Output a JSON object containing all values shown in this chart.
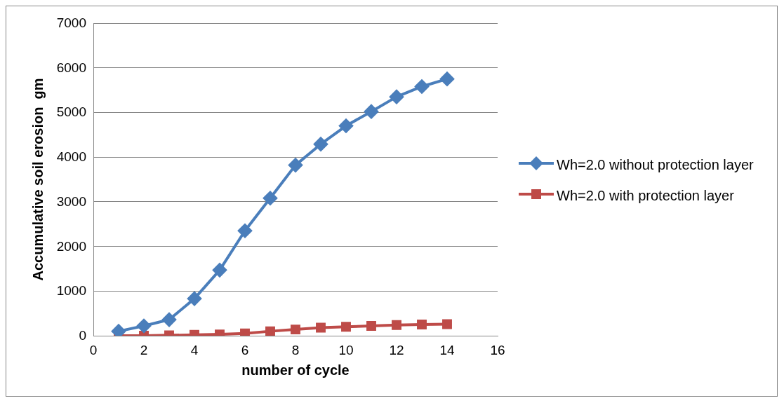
{
  "chart_data": {
    "type": "line",
    "xlabel": "number of cycle",
    "ylabel": "Accumulative soil erosion  gm",
    "x": [
      1,
      2,
      3,
      4,
      5,
      6,
      7,
      8,
      9,
      10,
      11,
      12,
      13,
      14
    ],
    "xlim": [
      0,
      16
    ],
    "xticks": [
      0,
      2,
      4,
      6,
      8,
      10,
      12,
      14,
      16
    ],
    "ylim": [
      0,
      7000
    ],
    "yticks": [
      0,
      1000,
      2000,
      3000,
      4000,
      5000,
      6000,
      7000
    ],
    "grid": "y",
    "legend": "right",
    "series": [
      {
        "name": "Wh=2.0 without protection layer",
        "color": "#4a7ebb",
        "marker": "diamond",
        "values": [
          100,
          220,
          360,
          830,
          1470,
          2350,
          3080,
          3820,
          4290,
          4700,
          5020,
          5350,
          5580,
          5750
        ]
      },
      {
        "name": "Wh=2.0 with protection layer",
        "color": "#be4b48",
        "marker": "square",
        "values": [
          0,
          0,
          10,
          20,
          30,
          50,
          100,
          140,
          180,
          200,
          220,
          240,
          250,
          260
        ]
      }
    ]
  }
}
